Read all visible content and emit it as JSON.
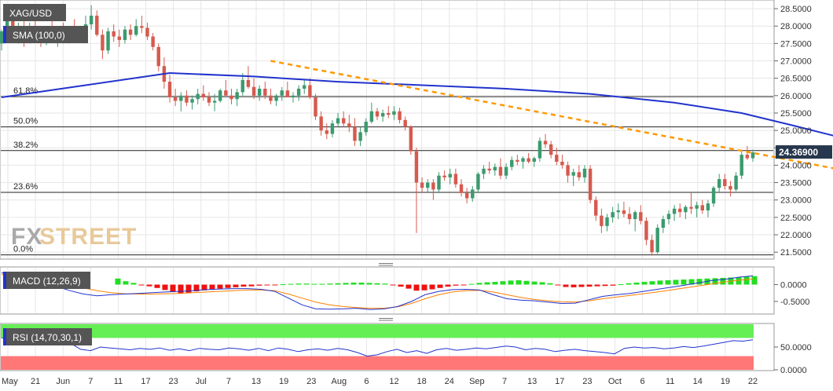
{
  "chart_data": [
    {
      "type": "candlestick",
      "symbol": "XAG/USD",
      "indicator_label": "SMA (100,0)",
      "watermark": "FXSTREET",
      "ylim": [
        21.3,
        28.75
      ],
      "y_ticks": [
        "28.5000",
        "28.0000",
        "27.5000",
        "27.0000",
        "26.5000",
        "26.0000",
        "25.5000",
        "25.0000",
        "24.5000",
        "24.0000",
        "23.5000",
        "23.0000",
        "22.5000",
        "22.0000",
        "21.5000"
      ],
      "last_price_label": "24.36900",
      "last_price": 24.369,
      "x_labels": [
        "May",
        "21",
        "Jun",
        "7",
        "11",
        "17",
        "23",
        "Jul",
        "7",
        "13",
        "19",
        "23",
        "Aug",
        "6",
        "12",
        "18",
        "24",
        "Sep",
        "7",
        "13",
        "17",
        "23",
        "Oct",
        "6",
        "11",
        "14",
        "19",
        "22"
      ],
      "fib_levels": [
        {
          "label": "61.8%",
          "value": 25.97
        },
        {
          "label": "50.0%",
          "value": 25.1
        },
        {
          "label": "38.2%",
          "value": 24.42
        },
        {
          "label": "23.6%",
          "value": 23.22
        },
        {
          "label": "0.0%",
          "value": 21.42
        }
      ],
      "candles": [
        [
          27.5,
          27.9,
          27.3,
          27.85
        ],
        [
          27.85,
          28.35,
          27.7,
          28.2
        ],
        [
          28.2,
          28.4,
          27.6,
          27.75
        ],
        [
          27.75,
          28.1,
          27.5,
          28.0
        ],
        [
          28.0,
          28.2,
          27.4,
          27.6
        ],
        [
          27.6,
          28.1,
          27.5,
          27.95
        ],
        [
          27.95,
          28.3,
          27.7,
          27.8
        ],
        [
          27.8,
          28.0,
          27.4,
          27.55
        ],
        [
          27.55,
          28.0,
          27.45,
          27.9
        ],
        [
          27.9,
          28.2,
          27.6,
          27.7
        ],
        [
          27.7,
          28.0,
          27.4,
          27.8
        ],
        [
          27.8,
          28.1,
          27.5,
          27.6
        ],
        [
          27.6,
          28.0,
          27.5,
          27.85
        ],
        [
          27.85,
          28.2,
          27.6,
          27.7
        ],
        [
          27.7,
          28.0,
          27.55,
          27.95
        ],
        [
          27.95,
          28.3,
          27.8,
          28.05
        ],
        [
          28.05,
          28.6,
          27.9,
          28.3
        ],
        [
          28.3,
          28.45,
          27.7,
          27.75
        ],
        [
          27.75,
          27.9,
          27.05,
          27.3
        ],
        [
          27.3,
          27.95,
          27.2,
          27.85
        ],
        [
          27.85,
          28.05,
          27.55,
          27.7
        ],
        [
          27.7,
          27.9,
          27.4,
          27.6
        ],
        [
          27.6,
          28.0,
          27.5,
          27.9
        ],
        [
          27.9,
          28.05,
          27.6,
          27.75
        ],
        [
          27.75,
          28.2,
          27.7,
          28.0
        ],
        [
          28.0,
          28.3,
          27.8,
          27.95
        ],
        [
          27.95,
          28.1,
          27.6,
          27.7
        ],
        [
          27.7,
          27.8,
          27.3,
          27.4
        ],
        [
          27.4,
          27.5,
          26.7,
          26.85
        ],
        [
          26.85,
          27.1,
          26.2,
          26.4
        ],
        [
          26.4,
          26.6,
          25.8,
          25.95
        ],
        [
          25.95,
          26.2,
          25.7,
          25.85
        ],
        [
          25.85,
          26.1,
          25.55,
          26.0
        ],
        [
          26.0,
          26.15,
          25.7,
          25.8
        ],
        [
          25.8,
          26.0,
          25.6,
          25.9
        ],
        [
          25.9,
          26.2,
          25.75,
          26.05
        ],
        [
          26.05,
          26.3,
          25.85,
          25.95
        ],
        [
          25.95,
          26.1,
          25.7,
          25.8
        ],
        [
          25.8,
          26.05,
          25.55,
          25.85
        ],
        [
          25.85,
          26.2,
          25.8,
          26.15
        ],
        [
          26.15,
          26.45,
          26.0,
          26.0
        ],
        [
          26.0,
          26.2,
          25.75,
          25.9
        ],
        [
          25.9,
          26.2,
          25.7,
          26.1
        ],
        [
          26.1,
          26.65,
          26.0,
          26.45
        ],
        [
          26.45,
          26.85,
          26.2,
          26.25
        ],
        [
          26.25,
          26.5,
          25.9,
          26.0
        ],
        [
          26.0,
          26.3,
          25.85,
          26.2
        ],
        [
          26.2,
          26.4,
          25.9,
          26.0
        ],
        [
          26.0,
          26.2,
          25.75,
          25.85
        ],
        [
          25.85,
          26.05,
          25.7,
          26.0
        ],
        [
          26.0,
          26.25,
          25.85,
          26.15
        ],
        [
          26.15,
          26.4,
          26.0,
          25.95
        ],
        [
          25.95,
          26.1,
          25.8,
          26.0
        ],
        [
          26.0,
          26.3,
          25.85,
          26.2
        ],
        [
          26.2,
          26.45,
          26.05,
          26.3
        ],
        [
          26.3,
          26.5,
          25.9,
          25.95
        ],
        [
          25.95,
          26.05,
          25.3,
          25.4
        ],
        [
          25.4,
          25.55,
          24.85,
          25.0
        ],
        [
          25.0,
          25.2,
          24.75,
          24.9
        ],
        [
          24.9,
          25.3,
          24.8,
          25.2
        ],
        [
          25.2,
          25.5,
          25.1,
          25.35
        ],
        [
          25.35,
          25.55,
          25.1,
          25.2
        ],
        [
          25.2,
          25.45,
          24.95,
          25.1
        ],
        [
          25.1,
          25.35,
          24.55,
          24.7
        ],
        [
          24.7,
          25.1,
          24.55,
          24.95
        ],
        [
          24.95,
          25.35,
          24.85,
          25.25
        ],
        [
          25.25,
          25.8,
          25.2,
          25.55
        ],
        [
          25.55,
          25.65,
          25.3,
          25.4
        ],
        [
          25.4,
          25.6,
          25.25,
          25.5
        ],
        [
          25.5,
          25.7,
          25.35,
          25.45
        ],
        [
          25.45,
          25.7,
          25.3,
          25.55
        ],
        [
          25.55,
          25.65,
          25.2,
          25.3
        ],
        [
          25.3,
          25.4,
          25.0,
          25.1
        ],
        [
          25.1,
          25.15,
          24.3,
          24.4
        ],
        [
          24.4,
          24.5,
          22.05,
          23.5
        ],
        [
          23.5,
          23.65,
          23.2,
          23.35
        ],
        [
          23.35,
          23.6,
          23.2,
          23.5
        ],
        [
          23.5,
          23.6,
          23.0,
          23.3
        ],
        [
          23.3,
          23.8,
          23.2,
          23.7
        ],
        [
          23.7,
          23.85,
          23.55,
          23.65
        ],
        [
          23.65,
          23.9,
          23.45,
          23.75
        ],
        [
          23.75,
          23.9,
          23.35,
          23.45
        ],
        [
          23.45,
          23.6,
          23.1,
          23.2
        ],
        [
          23.2,
          23.35,
          22.9,
          23.05
        ],
        [
          23.05,
          23.4,
          22.95,
          23.3
        ],
        [
          23.3,
          23.8,
          23.2,
          23.75
        ],
        [
          23.75,
          24.0,
          23.6,
          23.9
        ],
        [
          23.9,
          24.1,
          23.75,
          23.85
        ],
        [
          23.85,
          24.05,
          23.7,
          23.95
        ],
        [
          23.95,
          24.2,
          23.6,
          23.7
        ],
        [
          23.7,
          24.05,
          23.6,
          23.95
        ],
        [
          23.95,
          24.25,
          23.85,
          24.15
        ],
        [
          24.15,
          24.3,
          24.0,
          24.1
        ],
        [
          24.1,
          24.25,
          23.9,
          24.2
        ],
        [
          24.2,
          24.35,
          24.05,
          24.1
        ],
        [
          24.1,
          24.25,
          23.95,
          24.2
        ],
        [
          24.2,
          24.8,
          24.1,
          24.7
        ],
        [
          24.7,
          24.9,
          24.5,
          24.6
        ],
        [
          24.6,
          24.7,
          24.2,
          24.3
        ],
        [
          24.3,
          24.5,
          24.0,
          24.1
        ],
        [
          24.1,
          24.3,
          23.9,
          24.0
        ],
        [
          24.0,
          24.1,
          23.5,
          23.7
        ],
        [
          23.7,
          23.9,
          23.4,
          23.8
        ],
        [
          23.8,
          24.0,
          23.55,
          23.65
        ],
        [
          23.65,
          24.0,
          23.5,
          23.9
        ],
        [
          23.9,
          24.0,
          22.9,
          23.0
        ],
        [
          23.0,
          23.1,
          22.4,
          22.55
        ],
        [
          22.55,
          22.75,
          22.05,
          22.25
        ],
        [
          22.25,
          22.6,
          22.1,
          22.5
        ],
        [
          22.5,
          22.8,
          22.35,
          22.65
        ],
        [
          22.65,
          22.9,
          22.45,
          22.7
        ],
        [
          22.7,
          22.95,
          22.5,
          22.6
        ],
        [
          22.6,
          22.8,
          22.3,
          22.45
        ],
        [
          22.45,
          22.7,
          22.1,
          22.65
        ],
        [
          22.65,
          22.85,
          22.3,
          22.4
        ],
        [
          22.4,
          22.5,
          21.7,
          21.85
        ],
        [
          21.85,
          22.0,
          21.4,
          21.5
        ],
        [
          21.5,
          22.3,
          21.45,
          22.2
        ],
        [
          22.2,
          22.55,
          22.05,
          22.45
        ],
        [
          22.45,
          22.7,
          22.3,
          22.6
        ],
        [
          22.6,
          22.85,
          22.4,
          22.75
        ],
        [
          22.75,
          22.9,
          22.5,
          22.65
        ],
        [
          22.65,
          22.85,
          22.45,
          22.8
        ],
        [
          22.8,
          23.2,
          22.6,
          22.75
        ],
        [
          22.75,
          22.95,
          22.5,
          22.85
        ],
        [
          22.85,
          23.0,
          22.6,
          22.7
        ],
        [
          22.7,
          23.0,
          22.5,
          22.9
        ],
        [
          22.9,
          23.4,
          22.8,
          23.35
        ],
        [
          23.35,
          23.75,
          23.2,
          23.6
        ],
        [
          23.6,
          23.75,
          23.3,
          23.4
        ],
        [
          23.4,
          23.55,
          23.1,
          23.3
        ],
        [
          23.3,
          23.8,
          23.25,
          23.7
        ],
        [
          23.7,
          24.45,
          23.6,
          24.3
        ],
        [
          24.3,
          24.55,
          24.15,
          24.2
        ],
        [
          24.2,
          24.45,
          24.1,
          24.369
        ]
      ],
      "sma_100": [
        [
          0,
          25.95
        ],
        [
          15,
          26.3
        ],
        [
          30,
          26.65
        ],
        [
          45,
          26.55
        ],
        [
          60,
          26.4
        ],
        [
          75,
          26.3
        ],
        [
          90,
          26.2
        ],
        [
          105,
          26.05
        ],
        [
          120,
          25.8
        ],
        [
          132,
          25.5
        ],
        [
          141,
          25.15
        ],
        [
          154,
          24.62
        ]
      ],
      "trendline": {
        "start": [
          48,
          27.0
        ],
        "end": [
          165,
          23.4
        ],
        "color": "#ff9900"
      }
    },
    {
      "type": "bar+line",
      "indicator_label": "MACD (12,26,9)",
      "ylim": [
        -0.85,
        0.5
      ],
      "y_ticks": [
        "0.0000",
        "-0.5000"
      ],
      "histogram": [
        0.18,
        0.1,
        0.05,
        -0.02,
        -0.05,
        -0.1,
        -0.16,
        -0.22,
        -0.27,
        -0.25,
        -0.2,
        -0.17,
        -0.14,
        -0.12,
        -0.1,
        -0.08,
        -0.06,
        -0.05,
        -0.03,
        -0.02,
        -0.01,
        0.01,
        0.02,
        0.03,
        0.03,
        0.02,
        0.02,
        0.03,
        0.04,
        0.05,
        0.06,
        0.06,
        0.05,
        0.04,
        0.03,
        -0.01,
        -0.06,
        -0.12,
        -0.18,
        -0.17,
        -0.14,
        -0.1,
        -0.06,
        -0.03,
        -0.01,
        0.02,
        0.05,
        0.07,
        0.08,
        0.1,
        0.12,
        0.13,
        0.11,
        0.09,
        0.07,
        0.04,
        -0.02,
        -0.07,
        -0.08,
        -0.07,
        -0.06,
        -0.05,
        -0.04,
        -0.03,
        0.01,
        0.04,
        0.06,
        0.08,
        0.1,
        0.12,
        0.13,
        0.14,
        0.15,
        0.16,
        0.17,
        0.18,
        0.19,
        0.2,
        0.21,
        0.22,
        0.24,
        0.25
      ],
      "macd_line": [
        0.35,
        0.28,
        0.2,
        0.1,
        -0.05,
        -0.18,
        -0.28,
        -0.33,
        -0.3,
        -0.28,
        -0.26,
        -0.24,
        -0.22,
        -0.2,
        -0.18,
        -0.15,
        -0.13,
        -0.12,
        -0.12,
        -0.14,
        -0.2,
        -0.4,
        -0.6,
        -0.72,
        -0.73,
        -0.72,
        -0.7,
        -0.74,
        -0.72,
        -0.65,
        -0.5,
        -0.3,
        -0.2,
        -0.15,
        -0.14,
        -0.16,
        -0.3,
        -0.42,
        -0.46,
        -0.48,
        -0.52,
        -0.56,
        -0.55,
        -0.45,
        -0.35,
        -0.3,
        -0.26,
        -0.2,
        -0.14,
        -0.08,
        -0.02,
        0.05,
        0.12,
        0.16,
        0.22,
        0.26
      ],
      "signal_line": [
        0.3,
        0.27,
        0.22,
        0.15,
        0.08,
        0.0,
        -0.1,
        -0.18,
        -0.24,
        -0.27,
        -0.28,
        -0.28,
        -0.27,
        -0.26,
        -0.24,
        -0.22,
        -0.2,
        -0.18,
        -0.16,
        -0.16,
        -0.18,
        -0.28,
        -0.4,
        -0.52,
        -0.6,
        -0.65,
        -0.68,
        -0.7,
        -0.7,
        -0.66,
        -0.56,
        -0.42,
        -0.3,
        -0.22,
        -0.18,
        -0.17,
        -0.22,
        -0.3,
        -0.38,
        -0.44,
        -0.48,
        -0.51,
        -0.52,
        -0.48,
        -0.42,
        -0.37,
        -0.32,
        -0.27,
        -0.22,
        -0.16,
        -0.1,
        -0.04,
        0.02,
        0.08,
        0.13,
        0.17
      ]
    },
    {
      "type": "line",
      "indicator_label": "RSI (14,70,30,1)",
      "ylim": [
        0,
        100
      ],
      "y_ticks": [
        "50.0000",
        "0.0000"
      ],
      "overbought": 70,
      "oversold": 30,
      "values": [
        70,
        68,
        62,
        65,
        64,
        66,
        63,
        58,
        45,
        42,
        50,
        48,
        46,
        44,
        47,
        45,
        48,
        43,
        46,
        42,
        47,
        45,
        44,
        48,
        46,
        43,
        47,
        42,
        48,
        45,
        40,
        44,
        46,
        43,
        47,
        44,
        38,
        30,
        33,
        40,
        45,
        38,
        42,
        36,
        44,
        47,
        43,
        45,
        48,
        46,
        49,
        52,
        50,
        44,
        47,
        45,
        40,
        43,
        45,
        42,
        40,
        38,
        35,
        47,
        50,
        48,
        49,
        46,
        48,
        51,
        49,
        52,
        56,
        60,
        64,
        63,
        66
      ]
    }
  ],
  "colors": {
    "bull": "#3c9a6f",
    "bear": "#d65a4e",
    "sma": "#2233cc",
    "price_tag_bg": "#27374d",
    "badge_bg": "#555555",
    "macd_line": "#2233cc",
    "signal_line": "#ff8000",
    "hist_pos": "#22dd22",
    "hist_neg": "#ee1111",
    "rsi_line": "#2233cc",
    "rsi_overbought": "#66ee55",
    "rsi_oversold": "#ff7777",
    "grid": "#e6e6e6",
    "fib": "#222222"
  }
}
